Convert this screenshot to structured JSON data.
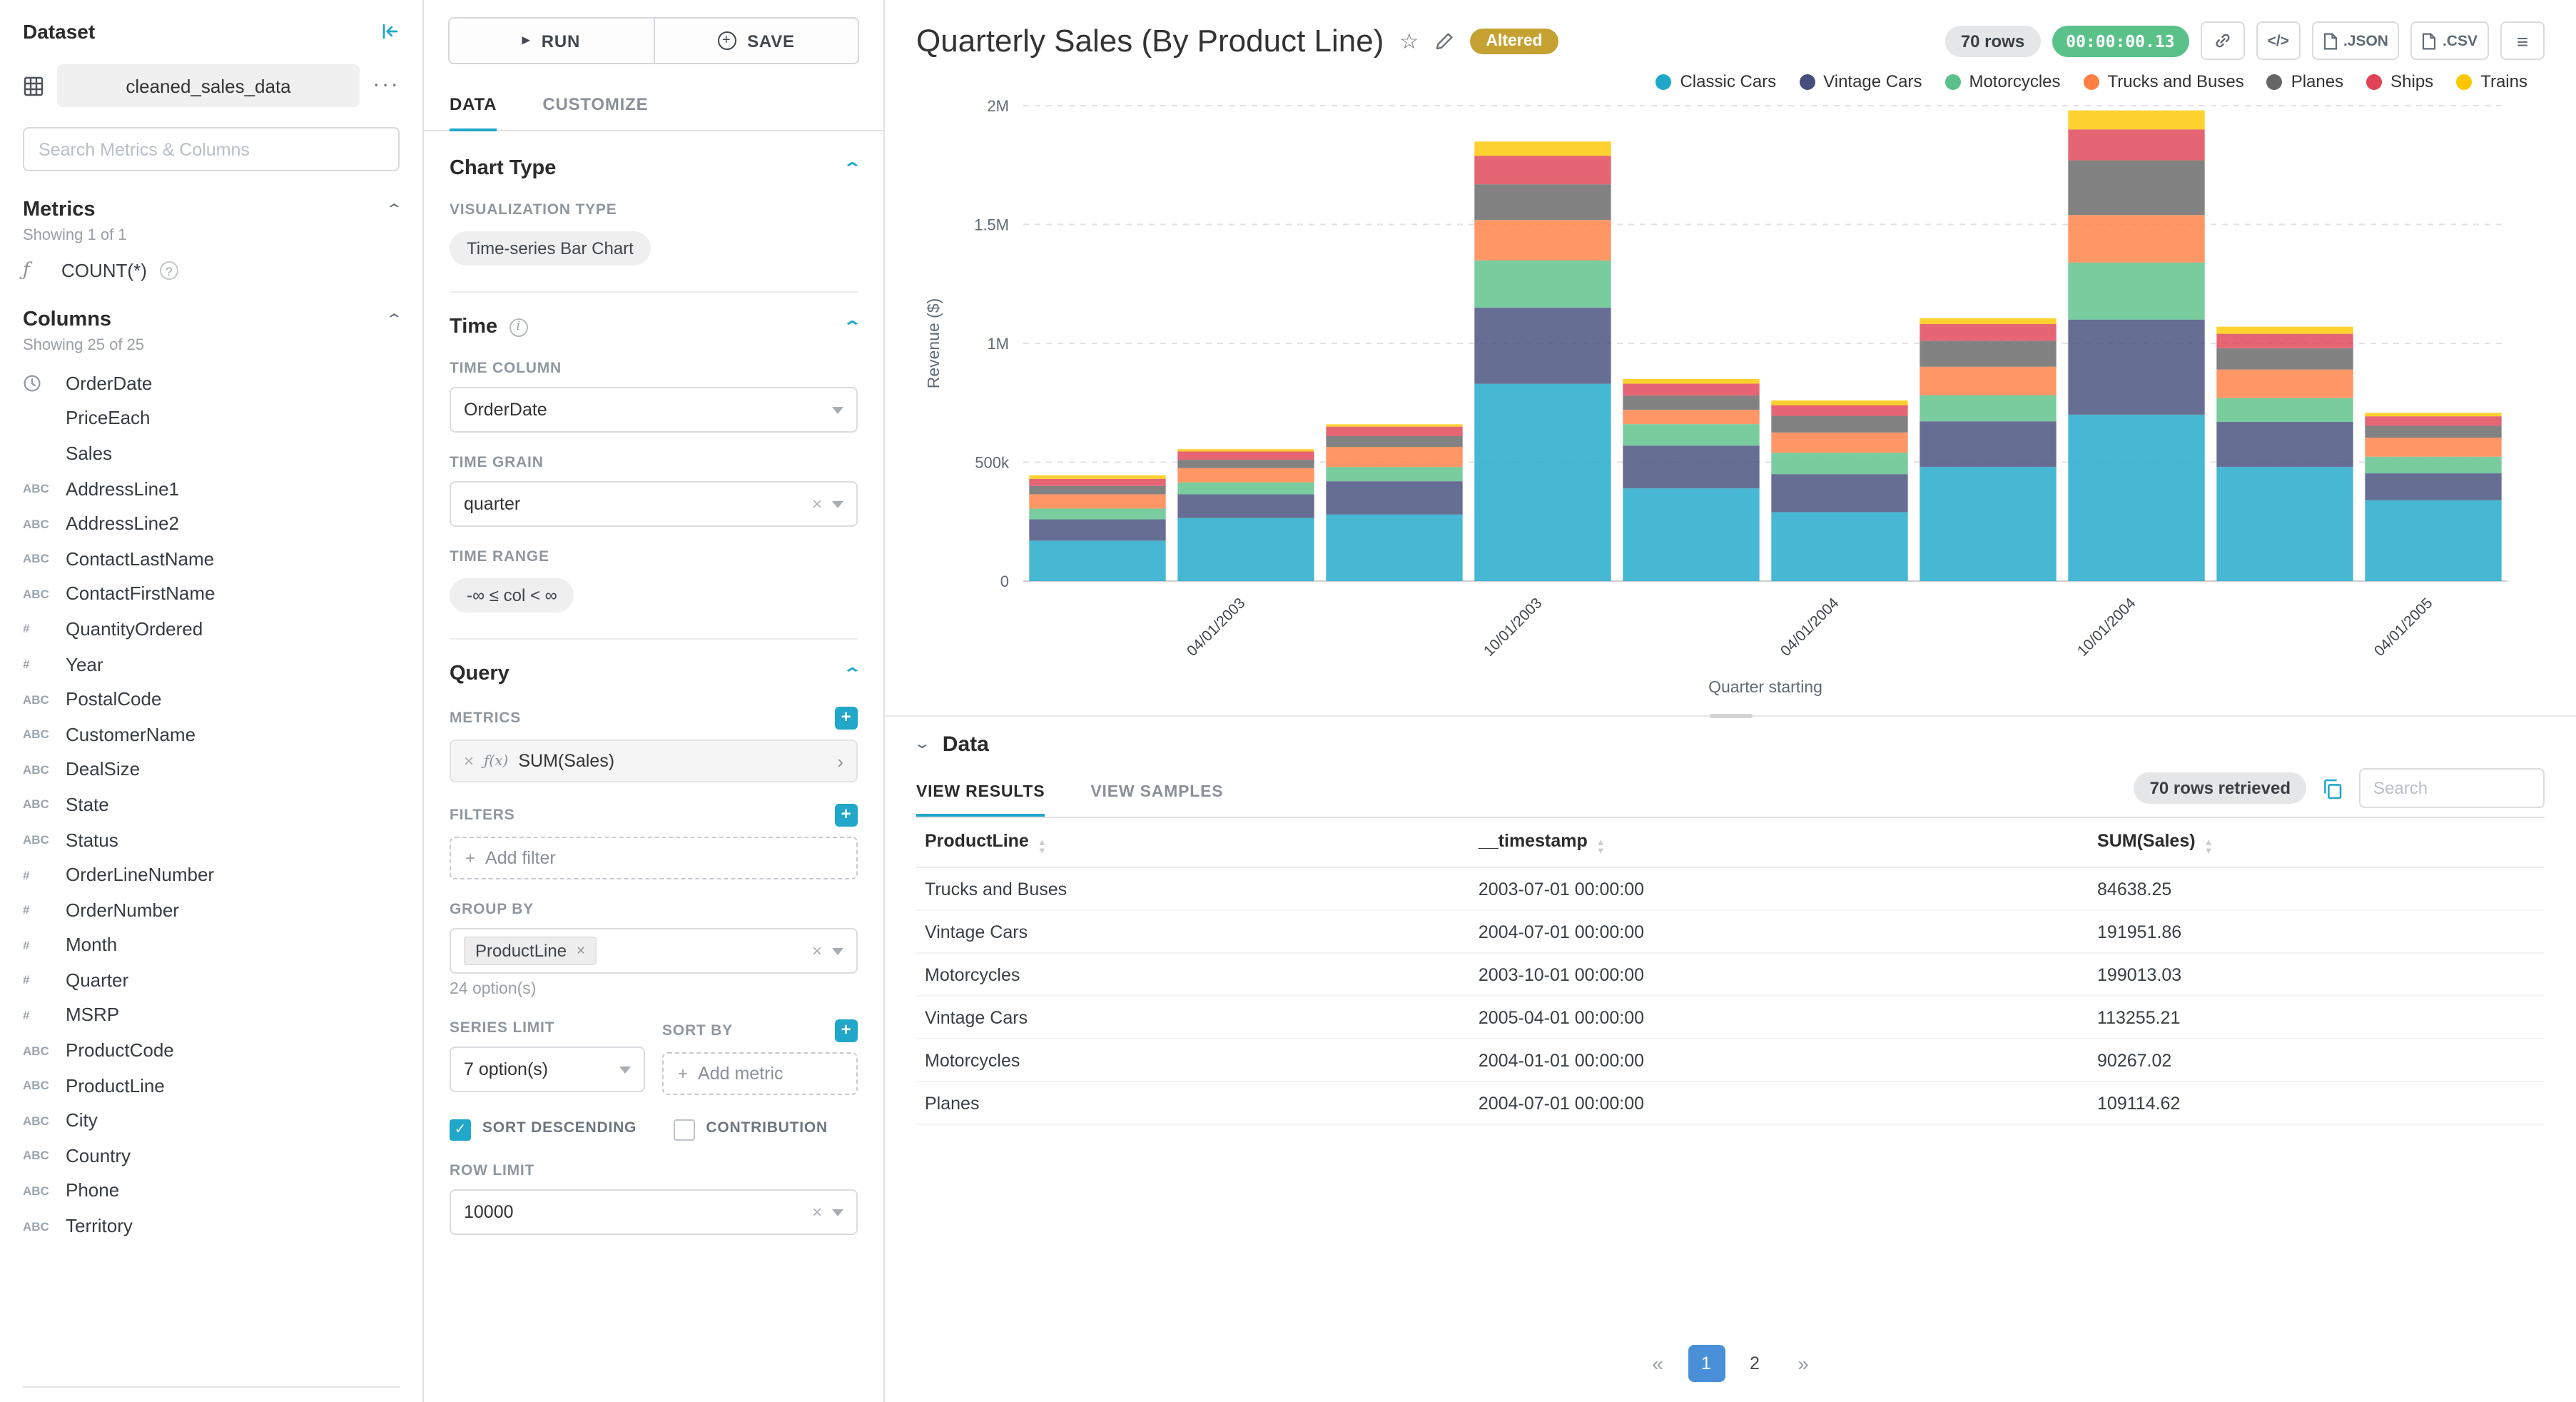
{
  "colors": {
    "accent": "#20A7C9",
    "green": "#5AC189",
    "gold": "#C5A132",
    "pageblue": "#4A90D9"
  },
  "icon_glyphs": {
    "abc": "ABC",
    "num": "#",
    "blank": "",
    "function": "ƒ",
    "fx": "ƒ(x)"
  },
  "dataset_panel": {
    "title": "Dataset",
    "name": "cleaned_sales_data",
    "search_placeholder": "Search Metrics & Columns",
    "metrics": {
      "title": "Metrics",
      "showing": "Showing 1 of 1",
      "items": [
        {
          "icon": "function",
          "label": "COUNT(*)"
        }
      ]
    },
    "columns": {
      "title": "Columns",
      "showing": "Showing 25 of 25",
      "items": [
        {
          "type": "time",
          "label": "OrderDate"
        },
        {
          "type": "blank",
          "label": "PriceEach"
        },
        {
          "type": "blank",
          "label": "Sales"
        },
        {
          "type": "abc",
          "label": "AddressLine1"
        },
        {
          "type": "abc",
          "label": "AddressLine2"
        },
        {
          "type": "abc",
          "label": "ContactLastName"
        },
        {
          "type": "abc",
          "label": "ContactFirstName"
        },
        {
          "type": "num",
          "label": "QuantityOrdered"
        },
        {
          "type": "num",
          "label": "Year"
        },
        {
          "type": "abc",
          "label": "PostalCode"
        },
        {
          "type": "abc",
          "label": "CustomerName"
        },
        {
          "type": "abc",
          "label": "DealSize"
        },
        {
          "type": "abc",
          "label": "State"
        },
        {
          "type": "abc",
          "label": "Status"
        },
        {
          "type": "num",
          "label": "OrderLineNumber"
        },
        {
          "type": "num",
          "label": "OrderNumber"
        },
        {
          "type": "num",
          "label": "Month"
        },
        {
          "type": "num",
          "label": "Quarter"
        },
        {
          "type": "num",
          "label": "MSRP"
        },
        {
          "type": "abc",
          "label": "ProductCode"
        },
        {
          "type": "abc",
          "label": "ProductLine"
        },
        {
          "type": "abc",
          "label": "City"
        },
        {
          "type": "abc",
          "label": "Country"
        },
        {
          "type": "abc",
          "label": "Phone"
        },
        {
          "type": "abc",
          "label": "Territory"
        }
      ]
    }
  },
  "control_panel": {
    "run_label": "RUN",
    "save_label": "SAVE",
    "tabs": [
      "DATA",
      "CUSTOMIZE"
    ],
    "chart_type": {
      "title": "Chart Type",
      "viz_label": "VISUALIZATION TYPE",
      "viz_value": "Time-series Bar Chart"
    },
    "time": {
      "title": "Time",
      "column_label": "TIME COLUMN",
      "column_value": "OrderDate",
      "grain_label": "TIME GRAIN",
      "grain_value": "quarter",
      "range_label": "TIME RANGE",
      "range_value": "-∞ ≤ col < ∞"
    },
    "query": {
      "title": "Query",
      "metrics_label": "METRICS",
      "metric_value": "SUM(Sales)",
      "filters_label": "FILTERS",
      "add_filter": "Add filter",
      "group_by_label": "GROUP BY",
      "group_by_value": "ProductLine",
      "group_by_hint": "24 option(s)",
      "series_limit_label": "SERIES LIMIT",
      "series_limit_value": "7 option(s)",
      "sort_by_label": "SORT BY",
      "add_metric": "Add metric",
      "sort_desc_label": "SORT DESCENDING",
      "contribution_label": "CONTRIBUTION",
      "row_limit_label": "ROW LIMIT",
      "row_limit_value": "10000"
    }
  },
  "header": {
    "title": "Quarterly Sales (By Product Line)",
    "altered": "Altered",
    "rows": "70 rows",
    "duration": "00:00:00.13",
    "embed": "</>",
    "json": ".JSON",
    "csv": ".CSV"
  },
  "chart_data": {
    "type": "bar",
    "stacked": true,
    "title": "Quarterly Sales (By Product Line)",
    "xlabel": "Quarter starting",
    "ylabel": "Revenue ($)",
    "ylim": [
      0,
      2000000
    ],
    "yticks": [
      "0",
      "500k",
      "1M",
      "1.5M",
      "2M"
    ],
    "ytick_values": [
      0,
      500000,
      1000000,
      1500000,
      2000000
    ],
    "grid": true,
    "legend_position": "top-right",
    "x": [
      "2003-01-01",
      "2003-04-01",
      "2003-07-01",
      "2003-10-01",
      "2004-01-01",
      "2004-04-01",
      "2004-07-01",
      "2004-10-01",
      "2005-01-01",
      "2005-04-01"
    ],
    "x_tick_labels": {
      "1": "04/01/2003",
      "3": "10/01/2003",
      "5": "04/01/2004",
      "7": "10/01/2004",
      "9": "04/01/2005"
    },
    "series": [
      {
        "name": "Classic Cars",
        "color": "#1FA8C9",
        "values": [
          170000,
          265000,
          280000,
          830000,
          390000,
          290000,
          480000,
          700000,
          480000,
          340000
        ]
      },
      {
        "name": "Vintage Cars",
        "color": "#454E7C",
        "values": [
          90000,
          100000,
          140000,
          320000,
          180000,
          160000,
          191952,
          400000,
          190000,
          113255
        ]
      },
      {
        "name": "Motorcycles",
        "color": "#5AC189",
        "values": [
          45000,
          50000,
          60000,
          199013,
          90267,
          90000,
          110000,
          240000,
          100000,
          70000
        ]
      },
      {
        "name": "Trucks and Buses",
        "color": "#FF7F44",
        "values": [
          60000,
          60000,
          84638,
          170000,
          60000,
          85000,
          120000,
          200000,
          120000,
          80000
        ]
      },
      {
        "name": "Planes",
        "color": "#666666",
        "values": [
          35000,
          35000,
          45000,
          150000,
          60000,
          70000,
          109115,
          230000,
          90000,
          50000
        ]
      },
      {
        "name": "Ships",
        "color": "#E04355",
        "values": [
          30000,
          35000,
          40000,
          120000,
          50000,
          45000,
          70000,
          130000,
          60000,
          40000
        ]
      },
      {
        "name": "Trains",
        "color": "#FCC700",
        "values": [
          15000,
          10000,
          10000,
          60000,
          20000,
          20000,
          25000,
          80000,
          30000,
          15000
        ]
      }
    ]
  },
  "data_panel": {
    "title": "Data",
    "tabs": [
      "VIEW RESULTS",
      "VIEW SAMPLES"
    ],
    "rows_retrieved": "70 rows retrieved",
    "search_placeholder": "Search",
    "table": {
      "columns": [
        "ProductLine",
        "__timestamp",
        "SUM(Sales)"
      ],
      "rows": [
        [
          "Trucks and Buses",
          "2003-07-01 00:00:00",
          "84638.25"
        ],
        [
          "Vintage Cars",
          "2004-07-01 00:00:00",
          "191951.86"
        ],
        [
          "Motorcycles",
          "2003-10-01 00:00:00",
          "199013.03"
        ],
        [
          "Vintage Cars",
          "2005-04-01 00:00:00",
          "113255.21"
        ],
        [
          "Motorcycles",
          "2004-01-01 00:00:00",
          "90267.02"
        ],
        [
          "Planes",
          "2004-07-01 00:00:00",
          "109114.62"
        ]
      ]
    },
    "pagination": [
      {
        "label": "«",
        "name": "prev-page",
        "nav": true
      },
      {
        "label": "1",
        "name": "page-1",
        "active": true
      },
      {
        "label": "2",
        "name": "page-2"
      },
      {
        "label": "»",
        "name": "next-page",
        "nav": true
      }
    ]
  }
}
